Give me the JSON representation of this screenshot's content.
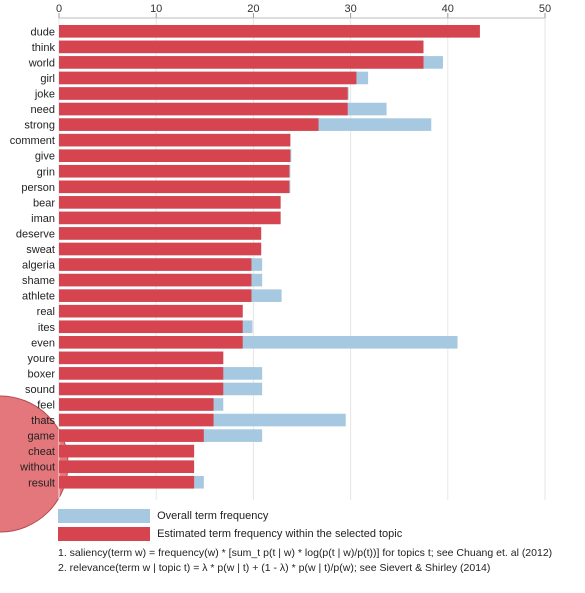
{
  "chart_data": {
    "type": "bar",
    "orientation": "horizontal",
    "xlim": [
      0,
      50
    ],
    "ticks": [
      0,
      10,
      20,
      30,
      40,
      50
    ],
    "categories": [
      "dude",
      "think",
      "world",
      "girl",
      "joke",
      "need",
      "strong",
      "comment",
      "give",
      "grin",
      "person",
      "bear",
      "iman",
      "deserve",
      "sweat",
      "algeria",
      "shame",
      "athlete",
      "real",
      "ites",
      "even",
      "youre",
      "boxer",
      "sound",
      "feel",
      "thats",
      "game",
      "cheat",
      "without",
      "result"
    ],
    "series": [
      {
        "name": "Overall term frequency",
        "color": "#a6c8e0",
        "values": [
          43.3,
          37.5,
          39.5,
          31.8,
          29.8,
          33.7,
          38.3,
          23.8,
          23.9,
          23.8,
          23.8,
          22.8,
          22.8,
          20.8,
          20.8,
          20.9,
          20.9,
          22.9,
          18.9,
          19.9,
          41.0,
          16.9,
          20.9,
          20.9,
          16.9,
          29.5,
          20.9,
          13.9,
          13.9,
          14.9
        ]
      },
      {
        "name": "Estimated term frequency within the selected topic",
        "color": "#d6454f",
        "values": [
          43.3,
          37.5,
          37.5,
          30.6,
          29.7,
          29.7,
          26.7,
          23.8,
          23.8,
          23.7,
          23.7,
          22.8,
          22.8,
          20.8,
          20.8,
          19.8,
          19.8,
          19.8,
          18.9,
          18.9,
          18.9,
          16.9,
          16.9,
          16.9,
          15.9,
          15.9,
          14.9,
          13.9,
          13.9,
          13.9
        ]
      }
    ],
    "legend_position": "bottom-left"
  },
  "legend": {
    "overall": "Overall term frequency",
    "estimated": "Estimated term frequency within the selected topic"
  },
  "notes": {
    "saliency": "1. saliency(term w) = frequency(w) * [sum_t p(t | w) * log(p(t | w)/p(t))] for topics t; see Chuang et. al (2012)",
    "relevance": "2. relevance(term w | topic t) = λ * p(w | t) + (1 - λ) * p(w | t)/p(w); see Sievert & Shirley (2014)"
  },
  "colors": {
    "overall": "#a6c8e0",
    "estimated": "#d6454f",
    "circle": "#e4777b"
  }
}
